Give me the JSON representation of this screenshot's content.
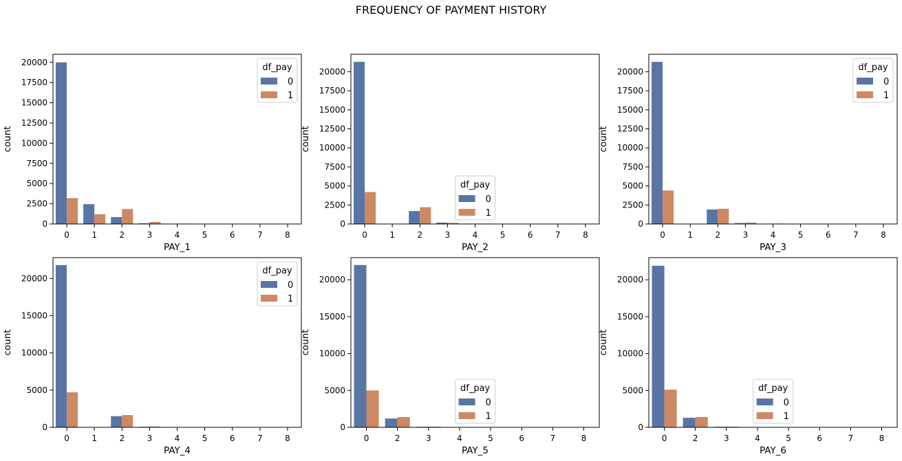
{
  "figure": {
    "title": "FREQUENCY OF PAYMENT HISTORY"
  },
  "colors": {
    "series_0": "#5875a4",
    "series_1": "#cc8963",
    "axis": "#000000",
    "legend_border": "#cccccc"
  },
  "chart_data": [
    {
      "type": "bar",
      "xlabel": "PAY_1",
      "ylabel": "count",
      "categories": [
        "0",
        "1",
        "2",
        "3",
        "4",
        "5",
        "6",
        "7",
        "8"
      ],
      "ylim": [
        0,
        21000
      ],
      "yticks": [
        0,
        2500,
        5000,
        7500,
        10000,
        12500,
        15000,
        17500,
        20000
      ],
      "series": [
        {
          "name": "0",
          "values": [
            20000,
            2450,
            850,
            80,
            25,
            10,
            5,
            5,
            5
          ]
        },
        {
          "name": "1",
          "values": [
            3200,
            1200,
            1850,
            250,
            50,
            15,
            10,
            5,
            5
          ]
        }
      ],
      "legend": {
        "title": "df_pay",
        "position": "upper right"
      }
    },
    {
      "type": "bar",
      "xlabel": "PAY_2",
      "ylabel": "count",
      "categories": [
        "0",
        "1",
        "2",
        "3",
        "4",
        "5",
        "6",
        "7",
        "8"
      ],
      "ylim": [
        0,
        22300
      ],
      "yticks": [
        0,
        2500,
        5000,
        7500,
        10000,
        12500,
        15000,
        17500,
        20000
      ],
      "series": [
        {
          "name": "0",
          "values": [
            21300,
            20,
            1700,
            180,
            50,
            15,
            8,
            5,
            5
          ]
        },
        {
          "name": "1",
          "values": [
            4200,
            10,
            2200,
            150,
            50,
            15,
            10,
            5,
            5
          ]
        }
      ],
      "legend": {
        "title": "df_pay",
        "position": "lower center"
      }
    },
    {
      "type": "bar",
      "xlabel": "PAY_3",
      "ylabel": "count",
      "categories": [
        "0",
        "1",
        "2",
        "3",
        "4",
        "5",
        "6",
        "7",
        "8"
      ],
      "ylim": [
        0,
        22300
      ],
      "yticks": [
        0,
        2500,
        5000,
        7500,
        10000,
        12500,
        15000,
        17500,
        20000
      ],
      "series": [
        {
          "name": "0",
          "values": [
            21300,
            5,
            1900,
            120,
            40,
            15,
            10,
            5,
            5
          ]
        },
        {
          "name": "1",
          "values": [
            4400,
            5,
            2000,
            180,
            60,
            15,
            10,
            5,
            5
          ]
        }
      ],
      "legend": {
        "title": "df_pay",
        "position": "upper right"
      }
    },
    {
      "type": "bar",
      "xlabel": "PAY_4",
      "ylabel": "count",
      "categories": [
        "0",
        "1",
        "2",
        "3",
        "4",
        "5",
        "6",
        "7",
        "8"
      ],
      "ylim": [
        0,
        22800
      ],
      "yticks": [
        0,
        5000,
        10000,
        15000,
        20000
      ],
      "series": [
        {
          "name": "0",
          "values": [
            21800,
            2,
            1500,
            80,
            30,
            15,
            5,
            5,
            5
          ]
        },
        {
          "name": "1",
          "values": [
            4700,
            2,
            1650,
            120,
            40,
            15,
            10,
            5,
            5
          ]
        }
      ],
      "legend": {
        "title": "df_pay",
        "position": "upper right"
      }
    },
    {
      "type": "bar",
      "xlabel": "PAY_5",
      "ylabel": "count",
      "categories": [
        "0",
        "2",
        "3",
        "4",
        "5",
        "6",
        "7",
        "8"
      ],
      "ylim": [
        0,
        23000
      ],
      "yticks": [
        0,
        5000,
        10000,
        15000,
        20000
      ],
      "series": [
        {
          "name": "0",
          "values": [
            22000,
            1200,
            80,
            30,
            10,
            5,
            5,
            5
          ]
        },
        {
          "name": "1",
          "values": [
            5000,
            1400,
            100,
            40,
            15,
            10,
            5,
            5
          ]
        }
      ],
      "legend": {
        "title": "df_pay",
        "position": "lower center"
      }
    },
    {
      "type": "bar",
      "xlabel": "PAY_6",
      "ylabel": "count",
      "categories": [
        "0",
        "2",
        "3",
        "4",
        "5",
        "6",
        "7",
        "8"
      ],
      "ylim": [
        0,
        23000
      ],
      "yticks": [
        0,
        5000,
        10000,
        15000,
        20000
      ],
      "series": [
        {
          "name": "0",
          "values": [
            21900,
            1300,
            80,
            30,
            10,
            5,
            5,
            5
          ]
        },
        {
          "name": "1",
          "values": [
            5100,
            1400,
            100,
            40,
            15,
            10,
            5,
            5
          ]
        }
      ],
      "legend": {
        "title": "df_pay",
        "position": "lower center"
      }
    }
  ]
}
